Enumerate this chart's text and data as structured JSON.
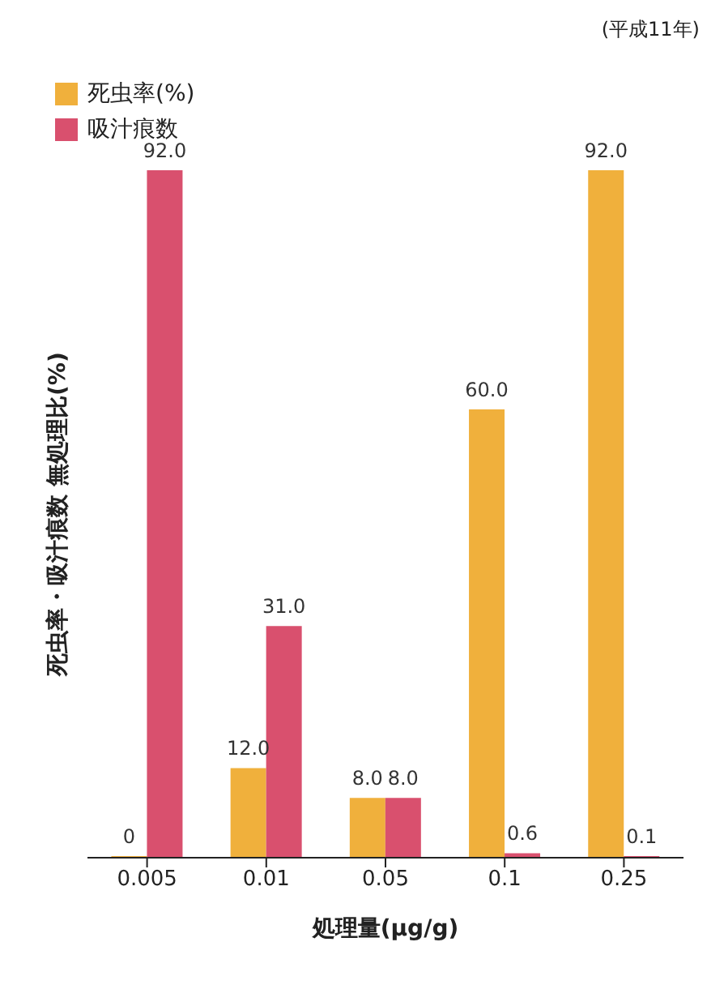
{
  "chart_data": {
    "type": "bar",
    "xlabel": "処理量(μg/g)",
    "ylabel": "死虫率・吸汁痕数 無処理比(%)",
    "annotations": [
      "(平成11年)"
    ],
    "categories": [
      "0.005",
      "0.01",
      "0.05",
      "0.1",
      "0.25"
    ],
    "series": [
      {
        "name": "死虫率(%)",
        "color": "#f0b03c",
        "values": [
          0,
          12.0,
          8.0,
          60.0,
          92.0
        ],
        "value_labels": [
          "0",
          "12.0",
          "8.0",
          "60.0",
          "92.0"
        ]
      },
      {
        "name": "吸汁痕数",
        "color": "#d9506e",
        "values": [
          92.0,
          31.0,
          8.0,
          0.6,
          0.1
        ],
        "value_labels": [
          "92.0",
          "31.0",
          "8.0",
          "0.6",
          "0.1"
        ]
      }
    ],
    "legend": "top left",
    "grid": false
  }
}
